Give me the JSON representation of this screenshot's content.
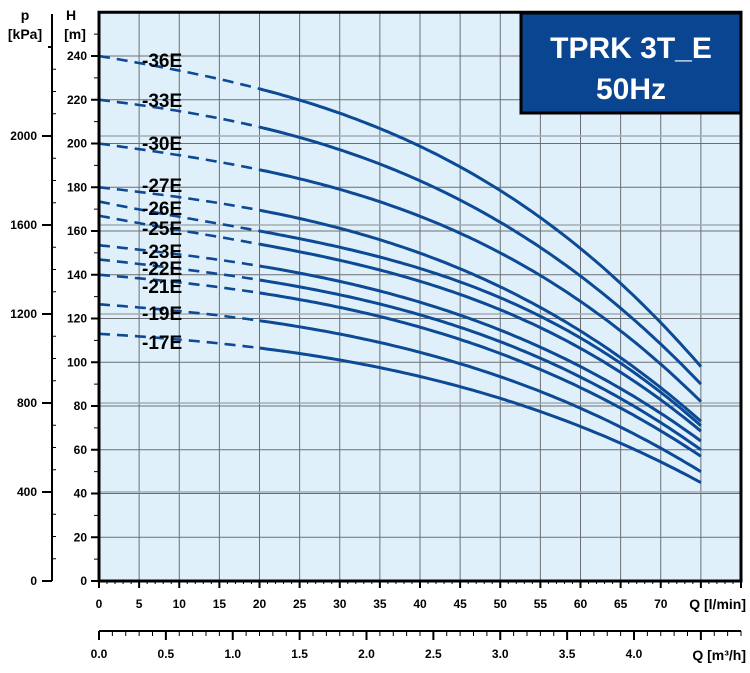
{
  "chart_data": {
    "type": "line",
    "title": "TPRK 3T_E",
    "subtitle": "50Hz",
    "xlabel": "Q [l/min]",
    "x2label": "Q [m³/h]",
    "ylabel_h": [
      "H",
      "[m]"
    ],
    "ylabel_p": [
      "p",
      "[kPa]"
    ],
    "xlim": [
      0,
      80
    ],
    "ylim": [
      0,
      260
    ],
    "x2lim": [
      0,
      4.8
    ],
    "grid": true,
    "x_ticks": [
      0,
      5,
      10,
      15,
      20,
      25,
      30,
      35,
      40,
      45,
      50,
      55,
      60,
      65,
      70
    ],
    "x2_ticks": [
      "0.0",
      "0.5",
      "1.0",
      "1.5",
      "2.0",
      "2.5",
      "3.0",
      "3.5",
      "4.0"
    ],
    "h_ticks": [
      0,
      20,
      40,
      60,
      80,
      100,
      120,
      140,
      160,
      180,
      200,
      220,
      240
    ],
    "p_ticks": [
      0,
      400,
      800,
      1200,
      1600,
      2000
    ],
    "dashed_until_q": 20,
    "x": [
      0,
      20,
      50,
      75
    ],
    "series": [
      {
        "name": "-36E",
        "values": [
          240,
          225,
          178.5,
          98
        ]
      },
      {
        "name": "-33E",
        "values": [
          220,
          207.5,
          164,
          90
        ]
      },
      {
        "name": "-30E",
        "values": [
          200,
          188,
          150,
          82
        ]
      },
      {
        "name": "-27E",
        "values": [
          180,
          169.5,
          134.5,
          73
        ]
      },
      {
        "name": "-26E",
        "values": [
          173.5,
          160,
          129.5,
          71
        ]
      },
      {
        "name": "-25E",
        "values": [
          167,
          154,
          124,
          68.5
        ]
      },
      {
        "name": "-23E",
        "values": [
          153.5,
          144,
          114.7,
          64
        ]
      },
      {
        "name": "-22E",
        "values": [
          147,
          137.6,
          109.4,
          60
        ]
      },
      {
        "name": "-21E",
        "values": [
          140,
          131.7,
          104,
          57
        ]
      },
      {
        "name": "-19E",
        "values": [
          126.5,
          119,
          93.4,
          50
        ]
      },
      {
        "name": "-17E",
        "values": [
          113,
          106.5,
          83.5,
          45
        ]
      }
    ],
    "colors": {
      "curve": "#0d4a96",
      "plot_bg": "#dff0fb",
      "title_bg": "#0a4592",
      "grid": "#6b6f73"
    }
  }
}
